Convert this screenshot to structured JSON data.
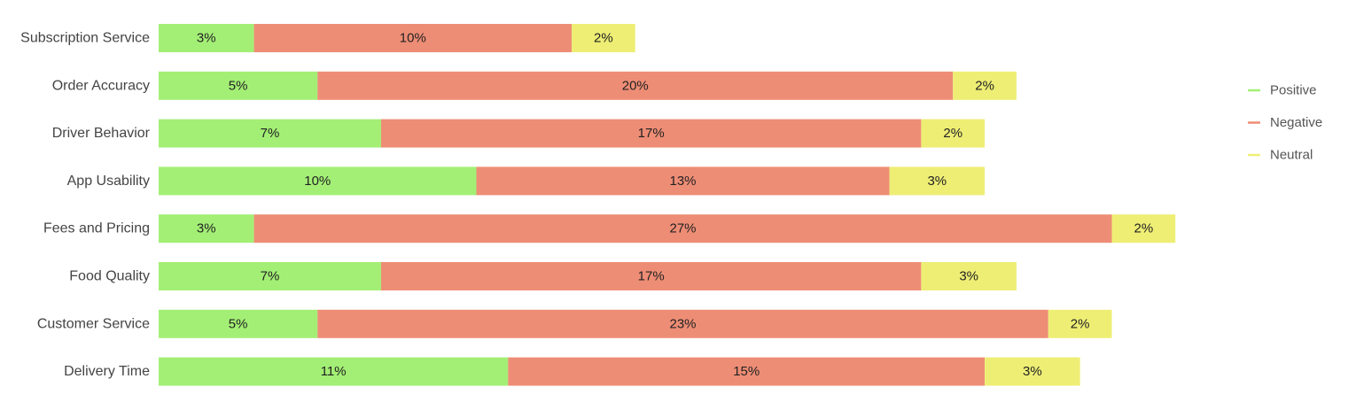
{
  "chart_data": {
    "type": "bar",
    "orientation": "horizontal",
    "stacked": true,
    "categories": [
      "Subscription Service",
      "Order Accuracy",
      "Driver Behavior",
      "App Usability",
      "Fees and Pricing",
      "Food Quality",
      "Customer Service",
      "Delivery Time"
    ],
    "series": [
      {
        "name": "Positive",
        "color": "#a3ef75",
        "values": [
          3,
          5,
          7,
          10,
          3,
          7,
          5,
          11
        ],
        "labels": [
          "3%",
          "5%",
          "7%",
          "10%",
          "3%",
          "7%",
          "5%",
          "11%"
        ]
      },
      {
        "name": "Negative",
        "color": "#ee8d75",
        "values": [
          10,
          20,
          17,
          13,
          27,
          17,
          23,
          15
        ],
        "labels": [
          "10%",
          "20%",
          "17%",
          "13%",
          "27%",
          "17%",
          "23%",
          "15%"
        ]
      },
      {
        "name": "Neutral",
        "color": "#eeee75",
        "values": [
          2,
          2,
          2,
          3,
          2,
          3,
          2,
          3
        ],
        "labels": [
          "2%",
          "2%",
          "2%",
          "3%",
          "2%",
          "3%",
          "2%",
          "3%"
        ]
      }
    ],
    "title": "",
    "xlabel": "",
    "ylabel": "",
    "xlim": [
      0,
      32
    ],
    "grid": false,
    "legend_position": "right"
  }
}
